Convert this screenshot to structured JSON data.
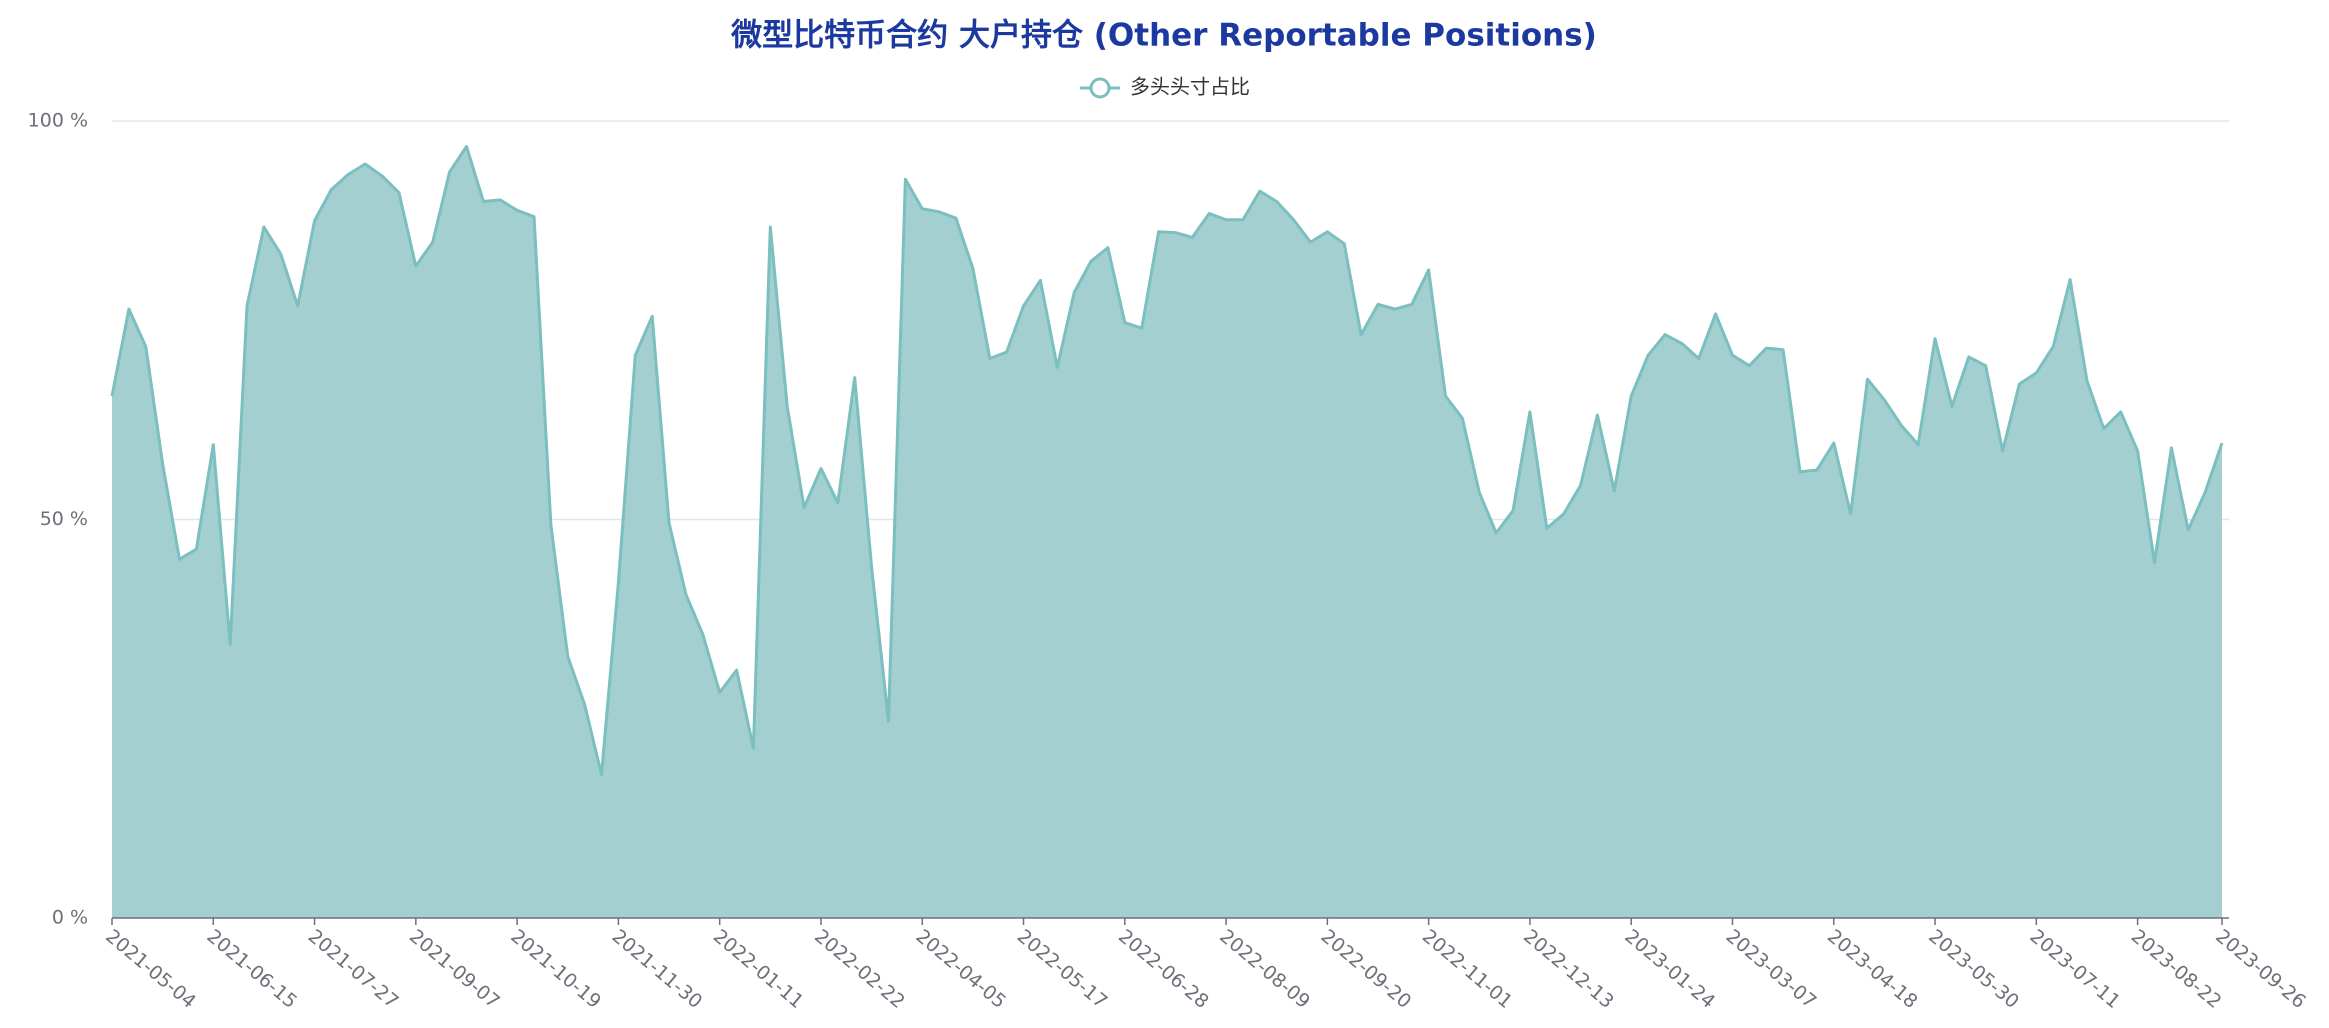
{
  "chart_data": {
    "type": "area",
    "title": "微型比特币合约 大户持仓 (Other Reportable Positions)",
    "categories": [
      "2021-05-04",
      null,
      null,
      null,
      null,
      null,
      "2021-06-15",
      null,
      null,
      null,
      null,
      null,
      "2021-07-27",
      null,
      null,
      null,
      null,
      null,
      "2021-09-07",
      null,
      null,
      null,
      null,
      null,
      "2021-10-19",
      null,
      null,
      null,
      null,
      null,
      "2021-11-30",
      null,
      null,
      null,
      null,
      null,
      "2022-01-11",
      null,
      null,
      null,
      null,
      null,
      "2022-02-22",
      null,
      null,
      null,
      null,
      null,
      "2022-04-05",
      null,
      null,
      null,
      null,
      null,
      "2022-05-17",
      null,
      null,
      null,
      null,
      null,
      "2022-06-28",
      null,
      null,
      null,
      null,
      null,
      "2022-08-09",
      null,
      null,
      null,
      null,
      null,
      "2022-09-20",
      null,
      null,
      null,
      null,
      null,
      "2022-11-01",
      null,
      null,
      null,
      null,
      null,
      "2022-12-13",
      null,
      null,
      null,
      null,
      null,
      "2023-01-24",
      null,
      null,
      null,
      null,
      null,
      "2023-03-07",
      null,
      null,
      null,
      null,
      null,
      "2023-04-18",
      null,
      null,
      null,
      null,
      null,
      "2023-05-30",
      null,
      null,
      null,
      null,
      null,
      "2023-07-11",
      null,
      null,
      null,
      null,
      null,
      "2023-08-22",
      null,
      null,
      null,
      null,
      "2023-09-26"
    ],
    "series": [
      {
        "name": "多头头寸占比",
        "color": "#7bbfbf",
        "fill": "#a3cfd0",
        "values": [
          65.5,
          76.4,
          71.7,
          57,
          45,
          46.3,
          59.4,
          34.3,
          76.8,
          86.7,
          83.3,
          76.8,
          87.5,
          91.4,
          93.3,
          94.6,
          93.1,
          91,
          81.8,
          84.8,
          93.6,
          96.8,
          89.9,
          90.1,
          88.8,
          88,
          49.3,
          32.8,
          26.8,
          18,
          42.1,
          70.6,
          75.5,
          49.6,
          40.6,
          35.6,
          28.3,
          31.1,
          21.3,
          86.7,
          64.2,
          51.5,
          56.4,
          52.1,
          67.8,
          44,
          24.7,
          92.7,
          89,
          88.6,
          87.8,
          81.5,
          70.2,
          71,
          76.8,
          80,
          69.1,
          78.5,
          82.4,
          84.1,
          74.7,
          74,
          86.1,
          86,
          85.4,
          88.4,
          87.6,
          87.6,
          91.2,
          89.9,
          87.6,
          84.8,
          86.1,
          84.6,
          73.2,
          77,
          76.4,
          77,
          81.3,
          65.5,
          62.7,
          53.4,
          48.3,
          51.1,
          63.5,
          48.9,
          50.7,
          54.3,
          63.1,
          53.6,
          65.5,
          70.6,
          73.2,
          72.1,
          70.2,
          75.8,
          70.6,
          69.3,
          71.5,
          71.3,
          56,
          56.2,
          59.6,
          50.7,
          67.6,
          65,
          61.8,
          59.4,
          72.7,
          64.2,
          70.4,
          69.3,
          58.6,
          67,
          68.4,
          71.7,
          80.1,
          67.4,
          61.4,
          63.5,
          58.6,
          44.6,
          59,
          48.7,
          53.4,
          59.6
        ]
      }
    ],
    "ylim": [
      0,
      100
    ],
    "yticks": [
      {
        "value": 0,
        "label": "0 %"
      },
      {
        "value": 50,
        "label": "50 %"
      },
      {
        "value": 100,
        "label": "100 %"
      }
    ],
    "grid": true
  }
}
